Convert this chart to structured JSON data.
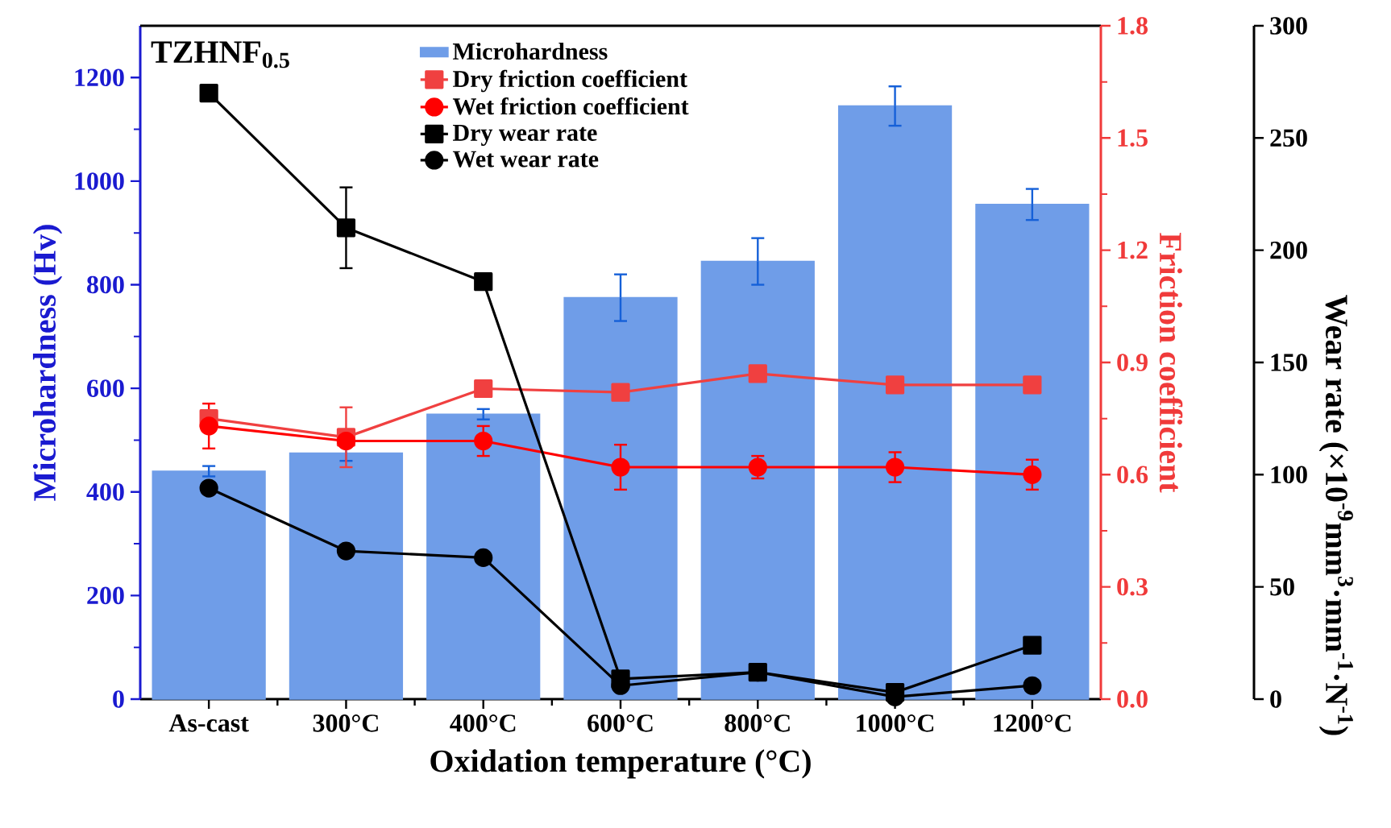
{
  "chart_data": {
    "type": "bar",
    "xlabel": "Oxidation temperature (°C)",
    "ylabel": "Microhardness (Hv)",
    "y2label": "Friction coefficient",
    "y3label": "Wear rate (×10$^{-9}$mm$^{3}$·mm$^{-1}$·N$^{-1}$)",
    "annotations": [
      "TZHNF$_{0.5}$"
    ],
    "categories": [
      "As-cast",
      "300°C",
      "400°C",
      "600°C",
      "800°C",
      "1000°C",
      "1200°C"
    ],
    "ylim": [
      0,
      1300
    ],
    "yticks": [
      0,
      200,
      400,
      600,
      800,
      1000,
      1200
    ],
    "y2lim": [
      0,
      1.8
    ],
    "y2ticks": [
      {
        "value": 0,
        "label": "0.0"
      },
      0.3,
      0.6,
      0.9,
      1.2,
      1.5,
      1.8
    ],
    "y3lim": [
      0,
      300
    ],
    "y3ticks": [
      0,
      50,
      100,
      150,
      200,
      250,
      300
    ],
    "legend": "top",
    "grid": false,
    "series": [
      {
        "name": "Microhardness",
        "color": "#6f9de8",
        "values": [
          440,
          475,
          550,
          775,
          845,
          1145,
          955
        ],
        "errors": [
          10,
          15,
          10,
          45,
          45,
          38,
          30
        ]
      },
      {
        "name": "Dry friction coefficient",
        "type": "line",
        "axis": "y2",
        "marker": "square",
        "color": "#f04040",
        "values": [
          0.75,
          0.7,
          0.83,
          0.82,
          0.87,
          0.84,
          0.84
        ],
        "errors": [
          null,
          0.08,
          null,
          null,
          null,
          null,
          null
        ]
      },
      {
        "name": "Wet friction coefficient",
        "type": "line",
        "axis": "y2",
        "marker": "circle",
        "color": "#ff0000",
        "values": [
          0.73,
          0.69,
          0.69,
          0.62,
          0.62,
          0.62,
          0.6
        ],
        "errors": [
          0.06,
          null,
          0.04,
          0.06,
          0.03,
          0.04,
          0.04
        ]
      },
      {
        "name": "Dry wear rate",
        "type": "line",
        "axis": "y3",
        "marker": "square",
        "color": "#000000",
        "values": [
          270,
          210,
          186,
          9,
          12,
          3,
          24
        ],
        "errors": [
          null,
          18,
          null,
          null,
          null,
          null,
          null
        ]
      },
      {
        "name": "Wet wear rate",
        "type": "line",
        "axis": "y3",
        "marker": "circle",
        "color": "#000000",
        "values": [
          94,
          66,
          63,
          6,
          12,
          1,
          6
        ]
      }
    ]
  }
}
